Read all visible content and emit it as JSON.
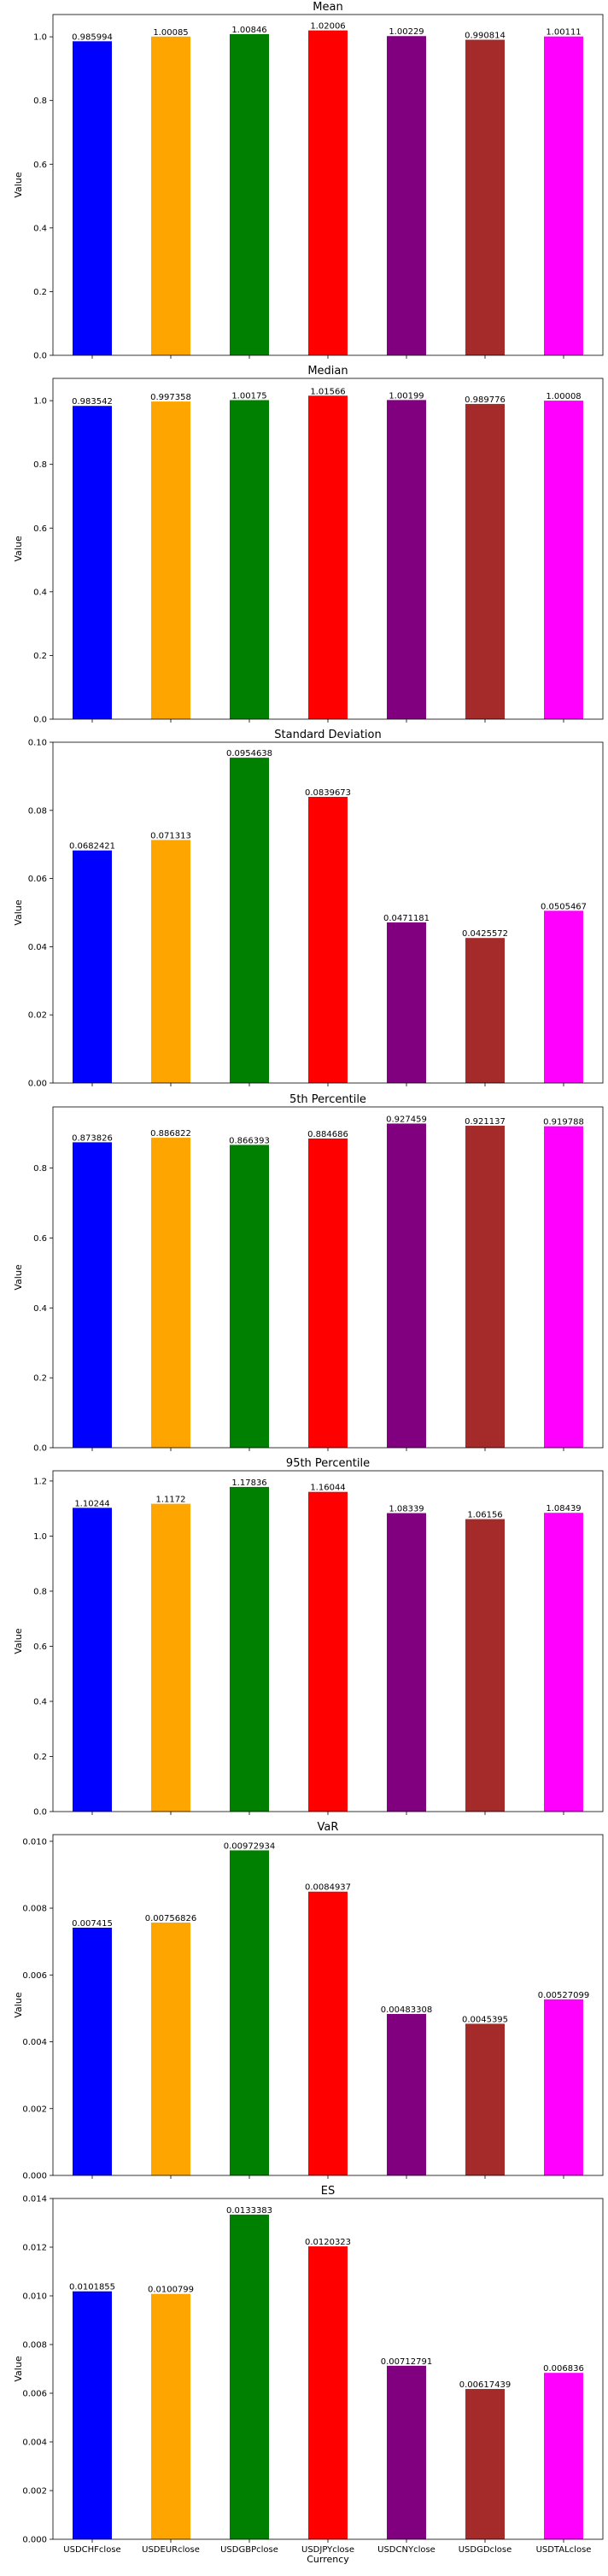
{
  "figure": {
    "background": "#ffffff",
    "bar_colors": [
      "#0000ff",
      "#ffa500",
      "#008000",
      "#ff0000",
      "#800080",
      "#a52a2a",
      "#ff00ff"
    ]
  },
  "chart_data": [
    {
      "type": "bar",
      "title": "Mean",
      "ylabel": "Value",
      "xlabel": "",
      "ylim": [
        0,
        1.07
      ],
      "yticks": [
        0.0,
        0.2,
        0.4,
        0.6,
        0.8,
        1.0
      ],
      "ytick_labels": [
        "0.0",
        "0.2",
        "0.4",
        "0.6",
        "0.8",
        "1.0"
      ],
      "categories": [
        "USDCHFclose",
        "USDEURclose",
        "USDGBPclose",
        "USDJPYclose",
        "USDCNYclose",
        "USDGDclose",
        "USDTALclose"
      ],
      "show_category_labels": false,
      "values": [
        0.985994,
        1.00085,
        1.00846,
        1.02006,
        1.00229,
        0.990814,
        1.00111
      ],
      "value_labels": [
        "0.985994",
        "1.00085",
        "1.00846",
        "1.02006",
        "1.00229",
        "0.990814",
        "1.00111"
      ]
    },
    {
      "type": "bar",
      "title": "Median",
      "ylabel": "Value",
      "xlabel": "",
      "ylim": [
        0,
        1.07
      ],
      "yticks": [
        0.0,
        0.2,
        0.4,
        0.6,
        0.8,
        1.0
      ],
      "ytick_labels": [
        "0.0",
        "0.2",
        "0.4",
        "0.6",
        "0.8",
        "1.0"
      ],
      "categories": [
        "USDCHFclose",
        "USDEURclose",
        "USDGBPclose",
        "USDJPYclose",
        "USDCNYclose",
        "USDGDclose",
        "USDTALclose"
      ],
      "show_category_labels": false,
      "values": [
        0.983542,
        0.997358,
        1.00175,
        1.01566,
        1.00199,
        0.989776,
        1.00008
      ],
      "value_labels": [
        "0.983542",
        "0.997358",
        "1.00175",
        "1.01566",
        "1.00199",
        "0.989776",
        "1.00008"
      ]
    },
    {
      "type": "bar",
      "title": "Standard Deviation",
      "ylabel": "Value",
      "xlabel": "",
      "ylim": [
        0,
        0.1
      ],
      "yticks": [
        0.0,
        0.02,
        0.04,
        0.06,
        0.08,
        0.1
      ],
      "ytick_labels": [
        "0.00",
        "0.02",
        "0.04",
        "0.06",
        "0.08",
        "0.10"
      ],
      "categories": [
        "USDCHFclose",
        "USDEURclose",
        "USDGBPclose",
        "USDJPYclose",
        "USDCNYclose",
        "USDGDclose",
        "USDTALclose"
      ],
      "show_category_labels": false,
      "values": [
        0.0682421,
        0.071313,
        0.0954638,
        0.0839673,
        0.0471181,
        0.0425572,
        0.0505467
      ],
      "value_labels": [
        "0.0682421",
        "0.071313",
        "0.0954638",
        "0.0839673",
        "0.0471181",
        "0.0425572",
        "0.0505467"
      ]
    },
    {
      "type": "bar",
      "title": "5th Percentile",
      "ylabel": "Value",
      "xlabel": "",
      "ylim": [
        0,
        0.975
      ],
      "yticks": [
        0.0,
        0.2,
        0.4,
        0.6,
        0.8
      ],
      "ytick_labels": [
        "0.0",
        "0.2",
        "0.4",
        "0.6",
        "0.8"
      ],
      "categories": [
        "USDCHFclose",
        "USDEURclose",
        "USDGBPclose",
        "USDJPYclose",
        "USDCNYclose",
        "USDGDclose",
        "USDTALclose"
      ],
      "show_category_labels": false,
      "values": [
        0.873826,
        0.886822,
        0.866393,
        0.884686,
        0.927459,
        0.921137,
        0.919788
      ],
      "value_labels": [
        "0.873826",
        "0.886822",
        "0.866393",
        "0.884686",
        "0.927459",
        "0.921137",
        "0.919788"
      ]
    },
    {
      "type": "bar",
      "title": "95th Percentile",
      "ylabel": "Value",
      "xlabel": "",
      "ylim": [
        0,
        1.237
      ],
      "yticks": [
        0.0,
        0.2,
        0.4,
        0.6,
        0.8,
        1.0,
        1.2
      ],
      "ytick_labels": [
        "0.0",
        "0.2",
        "0.4",
        "0.6",
        "0.8",
        "1.0",
        "1.2"
      ],
      "categories": [
        "USDCHFclose",
        "USDEURclose",
        "USDGBPclose",
        "USDJPYclose",
        "USDCNYclose",
        "USDGDclose",
        "USDTALclose"
      ],
      "show_category_labels": false,
      "values": [
        1.10244,
        1.1172,
        1.17836,
        1.16044,
        1.08339,
        1.06156,
        1.08439
      ],
      "value_labels": [
        "1.10244",
        "1.1172",
        "1.17836",
        "1.16044",
        "1.08339",
        "1.06156",
        "1.08439"
      ]
    },
    {
      "type": "bar",
      "title": "VaR",
      "ylabel": "Value",
      "xlabel": "",
      "ylim": [
        0,
        0.0102
      ],
      "yticks": [
        0.0,
        0.002,
        0.004,
        0.006,
        0.008,
        0.01
      ],
      "ytick_labels": [
        "0.000",
        "0.002",
        "0.004",
        "0.006",
        "0.008",
        "0.010"
      ],
      "categories": [
        "USDCHFclose",
        "USDEURclose",
        "USDGBPclose",
        "USDJPYclose",
        "USDCNYclose",
        "USDGDclose",
        "USDTALclose"
      ],
      "show_category_labels": false,
      "values": [
        0.007415,
        0.00756826,
        0.00972934,
        0.0084937,
        0.00483308,
        0.0045395,
        0.00527099
      ],
      "value_labels": [
        "0.007415",
        "0.00756826",
        "0.00972934",
        "0.0084937",
        "0.00483308",
        "0.0045395",
        "0.00527099"
      ]
    },
    {
      "type": "bar",
      "title": "ES",
      "ylabel": "Value",
      "xlabel": "Currency",
      "ylim": [
        0,
        0.014
      ],
      "yticks": [
        0.0,
        0.002,
        0.004,
        0.006,
        0.008,
        0.01,
        0.012,
        0.014
      ],
      "ytick_labels": [
        "0.000",
        "0.002",
        "0.004",
        "0.006",
        "0.008",
        "0.010",
        "0.012",
        "0.014"
      ],
      "categories": [
        "USDCHFclose",
        "USDEURclose",
        "USDGBPclose",
        "USDJPYclose",
        "USDCNYclose",
        "USDGDclose",
        "USDTALclose"
      ],
      "show_category_labels": true,
      "values": [
        0.0101855,
        0.0100799,
        0.0133383,
        0.0120323,
        0.00712791,
        0.00617439,
        0.006836
      ],
      "value_labels": [
        "0.0101855",
        "0.0100799",
        "0.0133383",
        "0.0120323",
        "0.00712791",
        "0.00617439",
        "0.006836"
      ]
    }
  ]
}
